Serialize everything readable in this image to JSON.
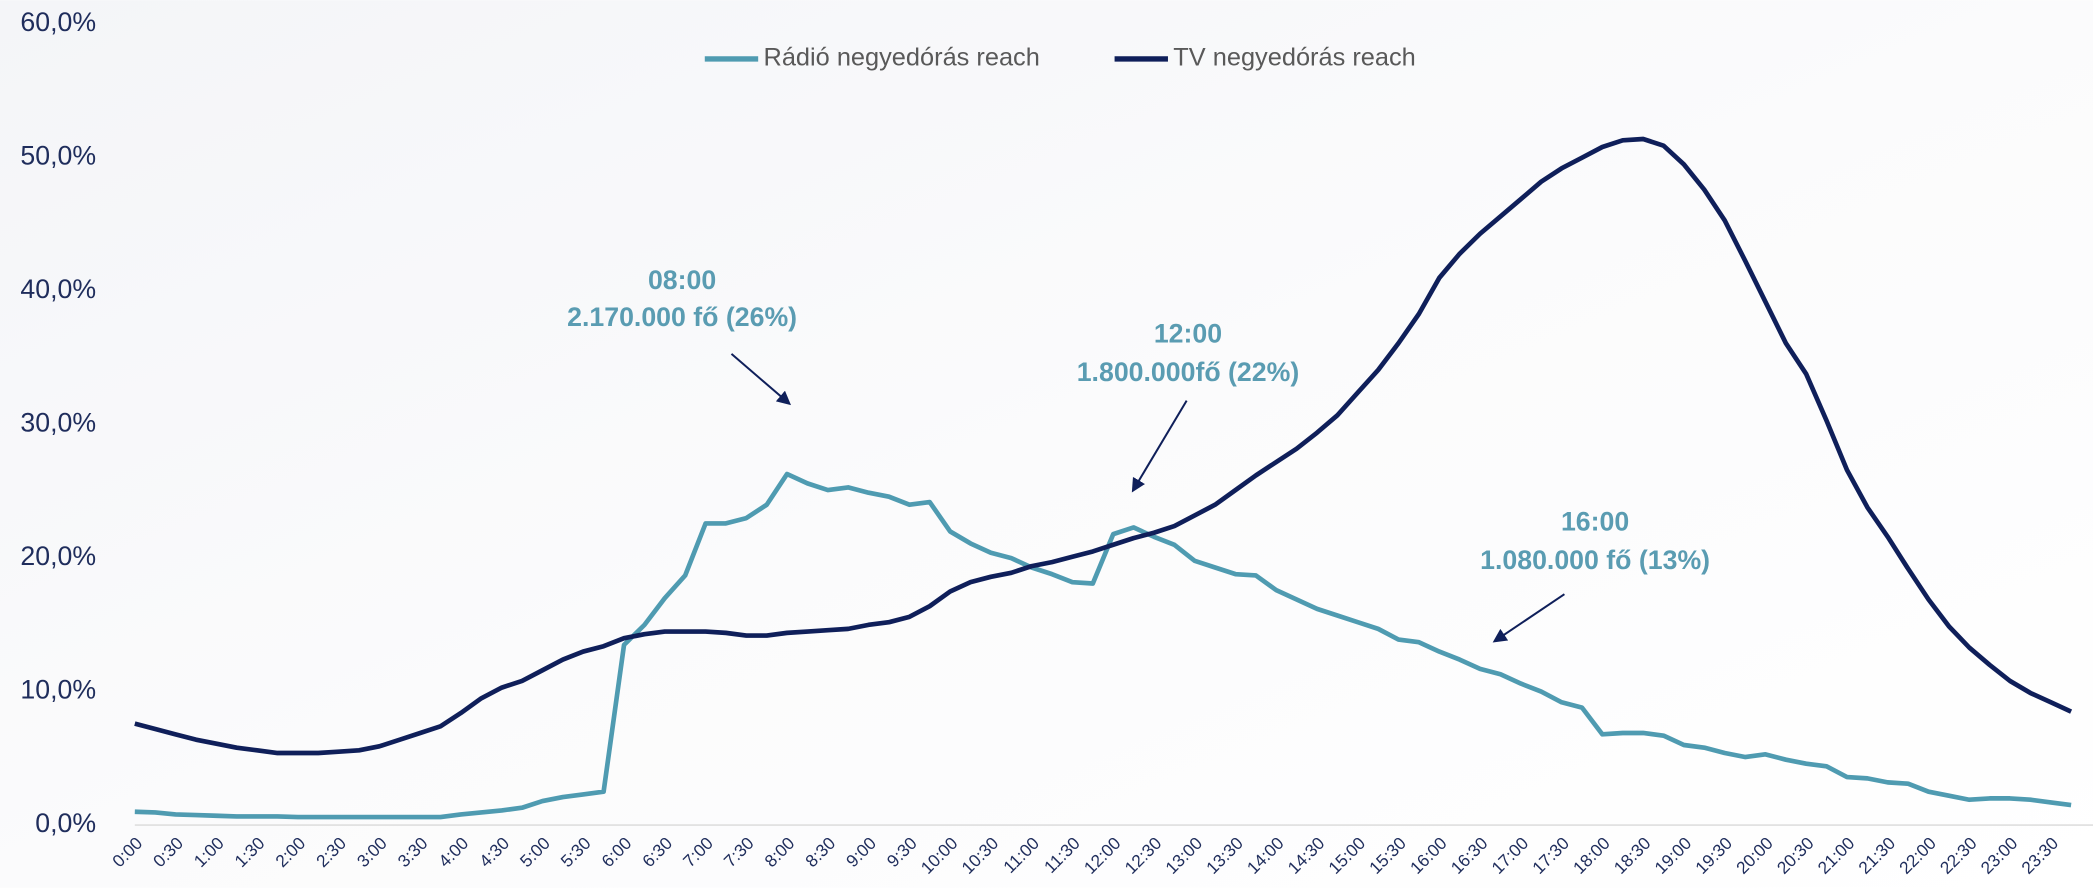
{
  "chart_data": {
    "type": "line",
    "legend": "top",
    "categories": [
      "0:00",
      null,
      "0:30",
      null,
      "1:00",
      null,
      "1:30",
      null,
      "2:00",
      null,
      "2:30",
      null,
      "3:00",
      null,
      "3:30",
      null,
      "4:00",
      null,
      "4:30",
      null,
      "5:00",
      null,
      "5:30",
      null,
      "6:00",
      null,
      "6:30",
      null,
      "7:00",
      null,
      "7:30",
      null,
      "8:00",
      null,
      "8:30",
      null,
      "9:00",
      null,
      "9:30",
      null,
      "10:00",
      null,
      "10:30",
      null,
      "11:00",
      null,
      "11:30",
      null,
      "12:00",
      null,
      "12:30",
      null,
      "13:00",
      null,
      "13:30",
      null,
      "14:00",
      null,
      "14:30",
      null,
      "15:00",
      null,
      "15:30",
      null,
      "16:00",
      null,
      "16:30",
      null,
      "17:00",
      null,
      "17:30",
      null,
      "18:00",
      null,
      "18:30",
      null,
      "19:00",
      null,
      "19:30",
      null,
      "20:00",
      null,
      "20:30",
      null,
      "21:00",
      null,
      "21:30",
      null,
      "22:00",
      null,
      "22:30",
      null,
      "23:00",
      null,
      "23:30",
      null
    ],
    "series": [
      {
        "name": "Rádió negyedórás reach",
        "color": "#4f9bb1",
        "values": [
          1.0,
          0.95,
          0.8,
          0.75,
          0.7,
          0.65,
          0.65,
          0.65,
          0.6,
          0.6,
          0.6,
          0.6,
          0.6,
          0.6,
          0.6,
          0.6,
          0.8,
          0.95,
          1.1,
          1.3,
          1.8,
          2.1,
          2.3,
          2.5,
          13.5,
          15.0,
          17.0,
          18.7,
          22.6,
          22.6,
          23.0,
          24.0,
          26.3,
          25.6,
          25.1,
          25.3,
          24.9,
          24.6,
          24.0,
          24.2,
          22.0,
          21.1,
          20.4,
          20.0,
          19.3,
          18.8,
          18.2,
          18.1,
          21.8,
          22.3,
          21.6,
          21.0,
          19.8,
          19.3,
          18.8,
          18.7,
          17.6,
          16.9,
          16.2,
          15.7,
          15.2,
          14.7,
          13.9,
          13.7,
          13.0,
          12.4,
          11.7,
          11.3,
          10.6,
          10.0,
          9.2,
          8.8,
          6.8,
          6.9,
          6.9,
          6.7,
          6.0,
          5.8,
          5.4,
          5.1,
          5.3,
          4.9,
          4.6,
          4.4,
          3.6,
          3.5,
          3.2,
          3.1,
          2.5,
          2.2,
          1.9,
          2.0,
          2.0,
          1.9,
          1.7,
          1.5
        ]
      },
      {
        "name": "TV negyedórás reach",
        "color": "#0f1f5a",
        "values": [
          7.6,
          7.2,
          6.8,
          6.4,
          6.1,
          5.8,
          5.6,
          5.4,
          5.4,
          5.4,
          5.5,
          5.6,
          5.9,
          6.4,
          6.9,
          7.4,
          8.4,
          9.5,
          10.3,
          10.8,
          11.6,
          12.4,
          13.0,
          13.4,
          14.0,
          14.3,
          14.5,
          14.5,
          14.5,
          14.4,
          14.2,
          14.2,
          14.4,
          14.5,
          14.6,
          14.7,
          15.0,
          15.2,
          15.6,
          16.4,
          17.5,
          18.2,
          18.6,
          18.9,
          19.4,
          19.7,
          20.1,
          20.5,
          21.0,
          21.5,
          21.9,
          22.4,
          23.2,
          24.0,
          25.1,
          26.2,
          27.2,
          28.2,
          29.4,
          30.7,
          32.4,
          34.1,
          36.1,
          38.3,
          41.0,
          42.8,
          44.3,
          45.6,
          46.9,
          48.2,
          49.2,
          50.0,
          50.8,
          51.3,
          51.4,
          50.9,
          49.5,
          47.6,
          45.3,
          42.3,
          39.2,
          36.1,
          33.8,
          30.3,
          26.6,
          23.8,
          21.6,
          19.2,
          16.9,
          14.9,
          13.3,
          12.0,
          10.8,
          9.9,
          9.2,
          8.5
        ]
      }
    ],
    "ylim": [
      0,
      60
    ],
    "yticks": [
      {
        "value": 0,
        "label": "0,0%"
      },
      {
        "value": 10,
        "label": "10,0%"
      },
      {
        "value": 20,
        "label": "20,0%"
      },
      {
        "value": 30,
        "label": "30,0%"
      },
      {
        "value": 40,
        "label": "40,0%"
      },
      {
        "value": 50,
        "label": "50,0%"
      },
      {
        "value": 60,
        "label": "60,0%"
      }
    ],
    "annotations": [
      {
        "title": "08:00",
        "text": "2.170.000 fő (26%)"
      },
      {
        "title": "12:00",
        "text": "1.800.000fő (22%)"
      },
      {
        "title": "16:00",
        "text": "1.080.000 fő (13%)"
      }
    ]
  }
}
